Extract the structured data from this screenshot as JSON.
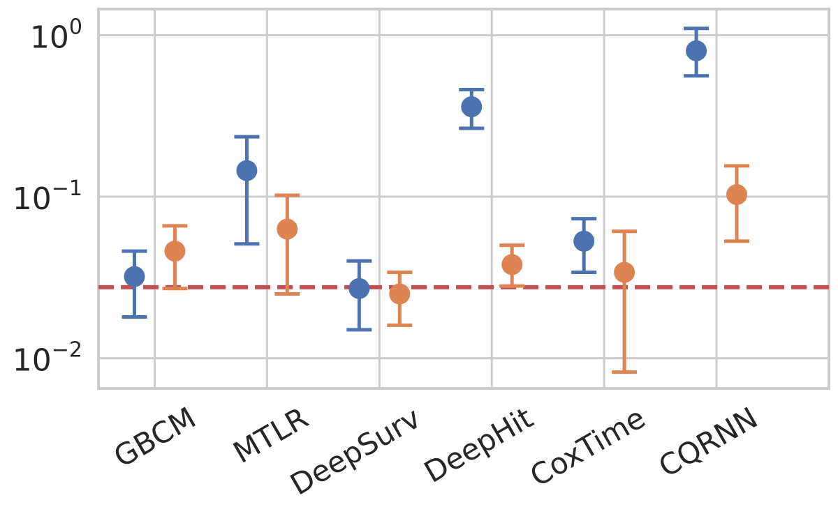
{
  "chart_data": {
    "type": "scatter",
    "yscale": "log",
    "ylim": [
      0.0065,
      1.45
    ],
    "y_ticks": [
      {
        "value": 1,
        "base": "10",
        "exp": "0"
      },
      {
        "value": 0.1,
        "base": "10",
        "exp": "−1"
      },
      {
        "value": 0.01,
        "base": "10",
        "exp": "−2"
      }
    ],
    "categories": [
      "GBCM",
      "MTLR",
      "DeepSurv",
      "DeepHit",
      "CoxTime",
      "CQRNN"
    ],
    "grid": true,
    "legend": "none",
    "colors": {
      "series1": "#4c72b0",
      "series2": "#dd8452",
      "reference": "#c44e52",
      "grid": "#cccccc"
    },
    "series": [
      {
        "color": "#4c72b0",
        "points": [
          {
            "category": "GBCM",
            "y": 0.032,
            "low": 0.018,
            "high": 0.046
          },
          {
            "category": "MTLR",
            "y": 0.145,
            "low": 0.051,
            "high": 0.235
          },
          {
            "category": "DeepSurv",
            "y": 0.027,
            "low": 0.015,
            "high": 0.04
          },
          {
            "category": "DeepHit",
            "y": 0.36,
            "low": 0.265,
            "high": 0.46
          },
          {
            "category": "CoxTime",
            "y": 0.053,
            "low": 0.034,
            "high": 0.073
          },
          {
            "category": "CQRNN",
            "y": 0.8,
            "low": 0.56,
            "high": 1.1
          }
        ]
      },
      {
        "color": "#dd8452",
        "points": [
          {
            "category": "GBCM",
            "y": 0.046,
            "low": 0.027,
            "high": 0.066
          },
          {
            "category": "MTLR",
            "y": 0.063,
            "low": 0.025,
            "high": 0.102
          },
          {
            "category": "DeepSurv",
            "y": 0.025,
            "low": 0.016,
            "high": 0.034
          },
          {
            "category": "DeepHit",
            "y": 0.038,
            "low": 0.028,
            "high": 0.05
          },
          {
            "category": "CoxTime",
            "y": 0.034,
            "low": 0.0082,
            "high": 0.061
          },
          {
            "category": "CQRNN",
            "y": 0.103,
            "low": 0.053,
            "high": 0.155
          }
        ]
      }
    ],
    "reference_line": {
      "y": 0.0275,
      "style": "dashed"
    }
  }
}
